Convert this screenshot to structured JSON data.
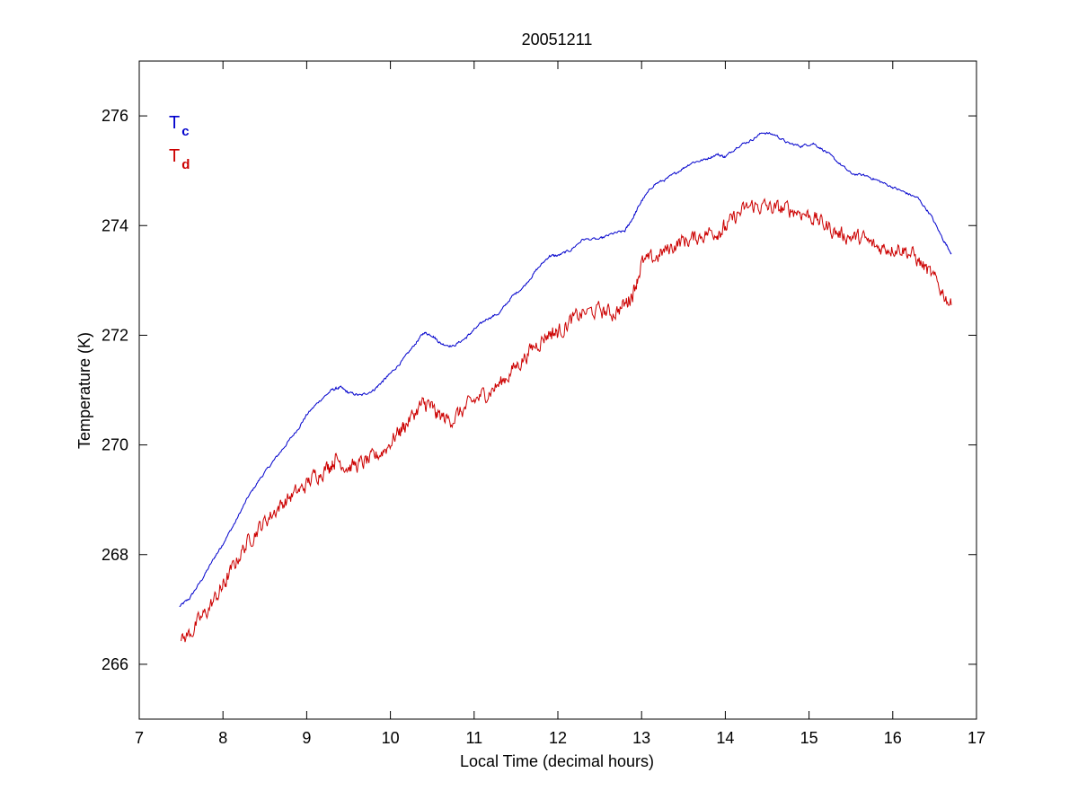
{
  "chart_data": {
    "type": "line",
    "title": "20051211",
    "xlabel": "Local Time (decimal hours)",
    "ylabel": "Temperature (K)",
    "xlim": [
      7,
      17
    ],
    "ylim": [
      265,
      277
    ],
    "xticks": [
      7,
      8,
      9,
      10,
      11,
      12,
      13,
      14,
      15,
      16,
      17
    ],
    "yticks": [
      266,
      268,
      270,
      272,
      274,
      276
    ],
    "grid": false,
    "legend_position": "top-left",
    "series": [
      {
        "name": "Tc",
        "name_main": "T",
        "name_sub": "c",
        "color": "#0000cc",
        "noise": 0.02,
        "points": [
          [
            7.48,
            267.05
          ],
          [
            7.6,
            267.2
          ],
          [
            7.75,
            267.55
          ],
          [
            7.9,
            267.95
          ],
          [
            8.0,
            268.2
          ],
          [
            8.15,
            268.6
          ],
          [
            8.3,
            269.05
          ],
          [
            8.45,
            269.4
          ],
          [
            8.6,
            269.7
          ],
          [
            8.75,
            270.0
          ],
          [
            8.9,
            270.3
          ],
          [
            9.0,
            270.55
          ],
          [
            9.15,
            270.8
          ],
          [
            9.3,
            271.0
          ],
          [
            9.4,
            271.05
          ],
          [
            9.5,
            270.95
          ],
          [
            9.65,
            270.9
          ],
          [
            9.8,
            271.0
          ],
          [
            9.9,
            271.15
          ],
          [
            10.0,
            271.3
          ],
          [
            10.15,
            271.55
          ],
          [
            10.3,
            271.85
          ],
          [
            10.4,
            272.05
          ],
          [
            10.5,
            272.0
          ],
          [
            10.6,
            271.85
          ],
          [
            10.75,
            271.8
          ],
          [
            10.9,
            271.95
          ],
          [
            11.0,
            272.1
          ],
          [
            11.15,
            272.3
          ],
          [
            11.3,
            272.4
          ],
          [
            11.45,
            272.7
          ],
          [
            11.6,
            272.9
          ],
          [
            11.75,
            273.2
          ],
          [
            11.9,
            273.45
          ],
          [
            12.0,
            273.45
          ],
          [
            12.15,
            273.55
          ],
          [
            12.3,
            273.75
          ],
          [
            12.5,
            273.75
          ],
          [
            12.65,
            273.85
          ],
          [
            12.8,
            273.9
          ],
          [
            12.9,
            274.15
          ],
          [
            13.0,
            274.45
          ],
          [
            13.15,
            274.75
          ],
          [
            13.3,
            274.85
          ],
          [
            13.45,
            275.0
          ],
          [
            13.6,
            275.15
          ],
          [
            13.75,
            275.2
          ],
          [
            13.9,
            275.3
          ],
          [
            14.0,
            275.25
          ],
          [
            14.15,
            275.45
          ],
          [
            14.3,
            275.55
          ],
          [
            14.45,
            275.7
          ],
          [
            14.6,
            275.65
          ],
          [
            14.75,
            275.5
          ],
          [
            14.9,
            275.45
          ],
          [
            15.05,
            275.5
          ],
          [
            15.2,
            275.35
          ],
          [
            15.35,
            275.15
          ],
          [
            15.5,
            274.95
          ],
          [
            15.7,
            274.9
          ],
          [
            15.85,
            274.8
          ],
          [
            16.0,
            274.7
          ],
          [
            16.15,
            274.6
          ],
          [
            16.3,
            274.5
          ],
          [
            16.45,
            274.2
          ],
          [
            16.6,
            273.75
          ],
          [
            16.7,
            273.5
          ]
        ]
      },
      {
        "name": "Td",
        "name_main": "T",
        "name_sub": "d",
        "color": "#cc0000",
        "noise": 0.12,
        "points": [
          [
            7.5,
            266.4
          ],
          [
            7.65,
            266.65
          ],
          [
            7.8,
            266.95
          ],
          [
            7.95,
            267.3
          ],
          [
            8.05,
            267.55
          ],
          [
            8.2,
            268.0
          ],
          [
            8.35,
            268.35
          ],
          [
            8.5,
            268.6
          ],
          [
            8.65,
            268.85
          ],
          [
            8.8,
            269.05
          ],
          [
            8.95,
            269.2
          ],
          [
            9.1,
            269.45
          ],
          [
            9.25,
            269.6
          ],
          [
            9.35,
            269.75
          ],
          [
            9.5,
            269.6
          ],
          [
            9.65,
            269.65
          ],
          [
            9.8,
            269.75
          ],
          [
            9.95,
            269.95
          ],
          [
            10.1,
            270.25
          ],
          [
            10.2,
            270.4
          ],
          [
            10.35,
            270.7
          ],
          [
            10.45,
            270.75
          ],
          [
            10.55,
            270.55
          ],
          [
            10.7,
            270.45
          ],
          [
            10.85,
            270.6
          ],
          [
            11.0,
            270.8
          ],
          [
            11.15,
            270.95
          ],
          [
            11.3,
            271.1
          ],
          [
            11.45,
            271.35
          ],
          [
            11.6,
            271.6
          ],
          [
            11.75,
            271.85
          ],
          [
            11.9,
            272.05
          ],
          [
            12.0,
            272.05
          ],
          [
            12.15,
            272.25
          ],
          [
            12.3,
            272.4
          ],
          [
            12.5,
            272.45
          ],
          [
            12.65,
            272.4
          ],
          [
            12.8,
            272.55
          ],
          [
            12.9,
            272.8
          ],
          [
            13.0,
            273.3
          ],
          [
            13.15,
            273.4
          ],
          [
            13.3,
            273.55
          ],
          [
            13.45,
            273.7
          ],
          [
            13.6,
            273.75
          ],
          [
            13.75,
            273.85
          ],
          [
            13.9,
            273.9
          ],
          [
            14.0,
            273.95
          ],
          [
            14.15,
            274.2
          ],
          [
            14.3,
            274.35
          ],
          [
            14.45,
            274.35
          ],
          [
            14.6,
            274.3
          ],
          [
            14.75,
            274.3
          ],
          [
            14.9,
            274.25
          ],
          [
            15.05,
            274.15
          ],
          [
            15.2,
            274.0
          ],
          [
            15.35,
            273.85
          ],
          [
            15.5,
            273.8
          ],
          [
            15.65,
            273.75
          ],
          [
            15.8,
            273.6
          ],
          [
            15.95,
            273.6
          ],
          [
            16.1,
            273.6
          ],
          [
            16.25,
            273.45
          ],
          [
            16.4,
            273.2
          ],
          [
            16.55,
            272.9
          ],
          [
            16.7,
            272.55
          ]
        ]
      }
    ]
  }
}
